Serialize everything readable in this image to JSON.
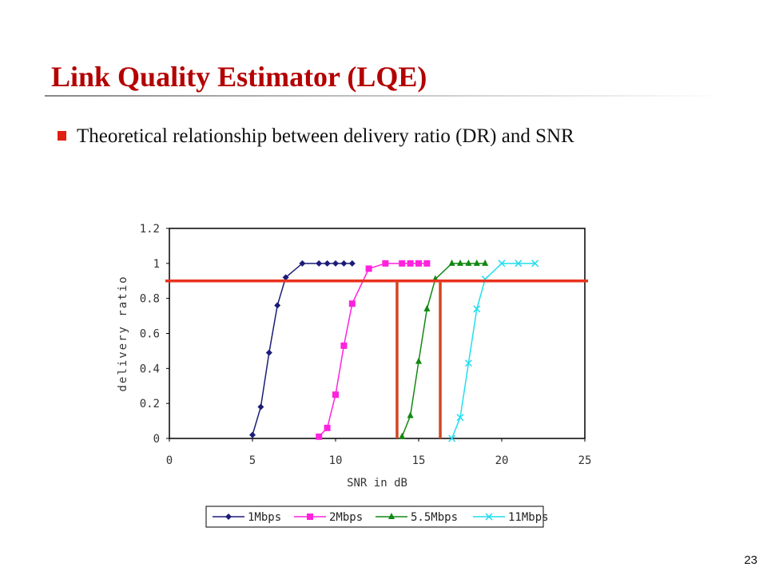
{
  "title": "Link Quality Estimator (LQE)",
  "bullet": "Theoretical relationship between delivery ratio (DR) and SNR",
  "page_number": "23",
  "chart_data": {
    "type": "line",
    "x_label": "SNR in dB",
    "y_label": "delivery ratio",
    "xlim": [
      0,
      25
    ],
    "xticks": [
      0,
      5,
      10,
      15,
      20,
      25
    ],
    "ylim": [
      0,
      1.2
    ],
    "yticks": [
      0,
      0.2,
      0.4,
      0.6,
      0.8,
      1,
      1.2
    ],
    "legend": "bottom",
    "reference_lines": {
      "y": 0.9,
      "x": [
        13.7,
        16.3
      ],
      "color": "#e8321e"
    },
    "series": [
      {
        "name": "1Mbps",
        "color": "#1c1c78",
        "marker": "diamond",
        "x": [
          5,
          5.5,
          6,
          6.5,
          7,
          8,
          9,
          9.5,
          10,
          10.5,
          11
        ],
        "values": [
          0.02,
          0.18,
          0.49,
          0.76,
          0.92,
          1,
          1,
          1,
          1,
          1,
          1
        ]
      },
      {
        "name": "2Mbps",
        "color": "#ff22dd",
        "marker": "square",
        "x": [
          9,
          9.5,
          10,
          10.5,
          11,
          12,
          13,
          14,
          14.5,
          15,
          15.5
        ],
        "values": [
          0.01,
          0.06,
          0.25,
          0.53,
          0.77,
          0.97,
          1,
          1,
          1,
          1,
          1
        ]
      },
      {
        "name": "5.5Mbps",
        "color": "#118811",
        "marker": "triangle",
        "x": [
          14,
          14.5,
          15,
          15.5,
          16,
          17,
          17.5,
          18,
          18.5,
          19
        ],
        "values": [
          0.01,
          0.13,
          0.44,
          0.74,
          0.91,
          1,
          1,
          1,
          1,
          1
        ]
      },
      {
        "name": "11Mbps",
        "color": "#22ddee",
        "marker": "x",
        "x": [
          17,
          17.5,
          18,
          18.5,
          19,
          20,
          21,
          22
        ],
        "values": [
          0,
          0.12,
          0.43,
          0.74,
          0.91,
          1,
          1,
          1
        ]
      }
    ]
  }
}
